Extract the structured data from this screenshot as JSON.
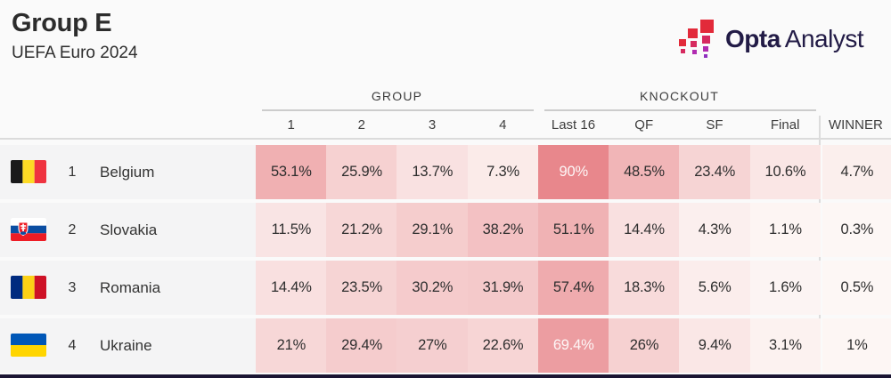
{
  "page": {
    "background": "#fafafa",
    "bottom_bar_color": "#1b1533"
  },
  "header": {
    "title": "Group E",
    "subtitle": "UEFA Euro 2024"
  },
  "logo": {
    "bold": "Opta",
    "light": "Analyst",
    "text_color": "#221b46",
    "mark_colors": [
      "#e22a3a",
      "#d62a5f",
      "#b02bb0",
      "#8f2fbf"
    ]
  },
  "chart_data": {
    "type": "heatmap",
    "title": "Group E",
    "subtitle": "UEFA Euro 2024",
    "column_groups": [
      {
        "label": "GROUP",
        "columns": [
          0,
          1,
          2,
          3
        ]
      },
      {
        "label": "KNOCKOUT",
        "columns": [
          4,
          5,
          6,
          7
        ]
      }
    ],
    "columns": [
      "1",
      "2",
      "3",
      "4",
      "Last 16",
      "QF",
      "SF",
      "Final",
      "WINNER"
    ],
    "teams": [
      {
        "rank": "1",
        "name": "Belgium",
        "flag": "belgium",
        "values": [
          53.1,
          25.9,
          13.7,
          7.3,
          90,
          48.5,
          23.4,
          10.6,
          4.7
        ],
        "labels": [
          "53.1%",
          "25.9%",
          "13.7%",
          "7.3%",
          "90%",
          "48.5%",
          "23.4%",
          "10.6%",
          "4.7%"
        ]
      },
      {
        "rank": "2",
        "name": "Slovakia",
        "flag": "slovakia",
        "values": [
          11.5,
          21.2,
          29.1,
          38.2,
          51.1,
          14.4,
          4.3,
          1.1,
          0.3
        ],
        "labels": [
          "11.5%",
          "21.2%",
          "29.1%",
          "38.2%",
          "51.1%",
          "14.4%",
          "4.3%",
          "1.1%",
          "0.3%"
        ]
      },
      {
        "rank": "3",
        "name": "Romania",
        "flag": "romania",
        "values": [
          14.4,
          23.5,
          30.2,
          31.9,
          57.4,
          18.3,
          5.6,
          1.6,
          0.5
        ],
        "labels": [
          "14.4%",
          "23.5%",
          "30.2%",
          "31.9%",
          "57.4%",
          "18.3%",
          "5.6%",
          "1.6%",
          "0.5%"
        ]
      },
      {
        "rank": "4",
        "name": "Ukraine",
        "flag": "ukraine",
        "values": [
          21,
          29.4,
          27,
          22.6,
          69.4,
          26,
          9.4,
          3.1,
          1
        ],
        "labels": [
          "21%",
          "29.4%",
          "27%",
          "22.6%",
          "69.4%",
          "26%",
          "9.4%",
          "3.1%",
          "1%"
        ]
      }
    ],
    "color_scale": {
      "low": "#fdf8f6",
      "high": "#e8878c",
      "domain": [
        0,
        90
      ],
      "gamma": 0.85,
      "white_text_min": 63
    },
    "legend": false
  }
}
